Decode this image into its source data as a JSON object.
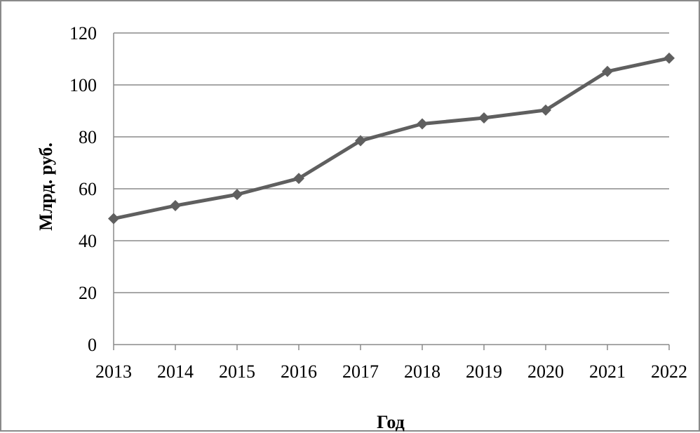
{
  "chart_data": {
    "type": "line",
    "title": "",
    "xlabel": "Год",
    "ylabel": "Млрд. руб.",
    "categories": [
      "2013",
      "2014",
      "2015",
      "2016",
      "2017",
      "2018",
      "2019",
      "2020",
      "2021",
      "2022"
    ],
    "series": [
      {
        "values": [
          48.5,
          53.5,
          57.8,
          64.0,
          78.5,
          85.0,
          87.3,
          90.3,
          105.2,
          110.3
        ]
      }
    ],
    "ylim": [
      0,
      120
    ],
    "yticks": [
      "0",
      "20",
      "40",
      "60",
      "80",
      "100",
      "120"
    ],
    "grid": true,
    "legend": "none",
    "marker": "diamond",
    "line_color": "#5f5f5f",
    "grid_color": "#8a8a8a"
  }
}
